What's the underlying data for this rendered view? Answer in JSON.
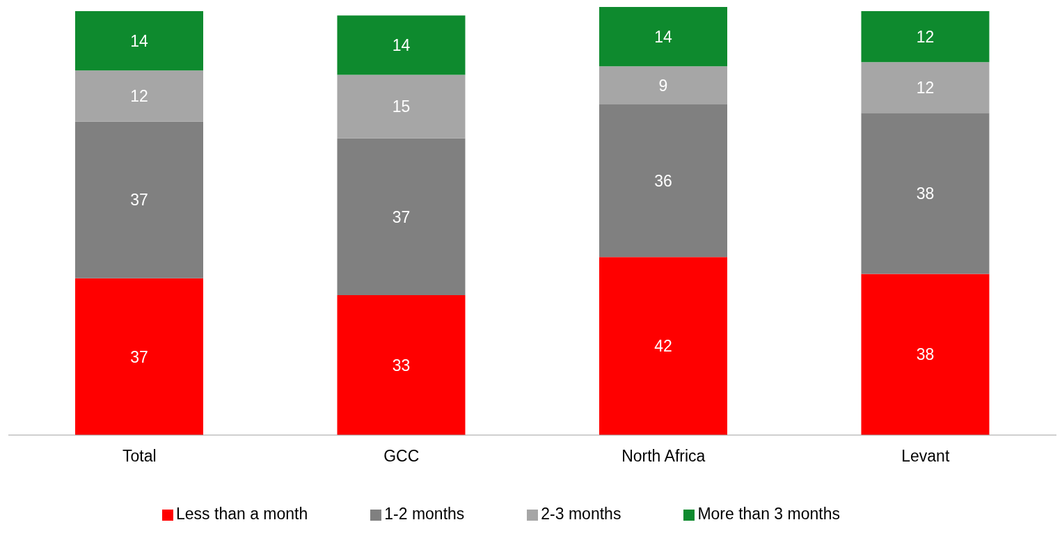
{
  "chart_data": {
    "type": "bar",
    "stacked": true,
    "categories": [
      "Total",
      "GCC",
      "North Africa",
      "Levant"
    ],
    "series": [
      {
        "name": "Less than a month",
        "color": "#ff0000",
        "values": [
          37,
          33,
          42,
          38
        ]
      },
      {
        "name": "1-2 months",
        "color": "#808080",
        "values": [
          37,
          37,
          36,
          38
        ]
      },
      {
        "name": "2-3 months",
        "color": "#a6a6a6",
        "values": [
          12,
          15,
          9,
          12
        ]
      },
      {
        "name": "More than 3 months",
        "color": "#0e8a2e",
        "values": [
          14,
          14,
          14,
          12
        ]
      }
    ],
    "data_labels": true,
    "legend": "bottom",
    "grid": false
  }
}
